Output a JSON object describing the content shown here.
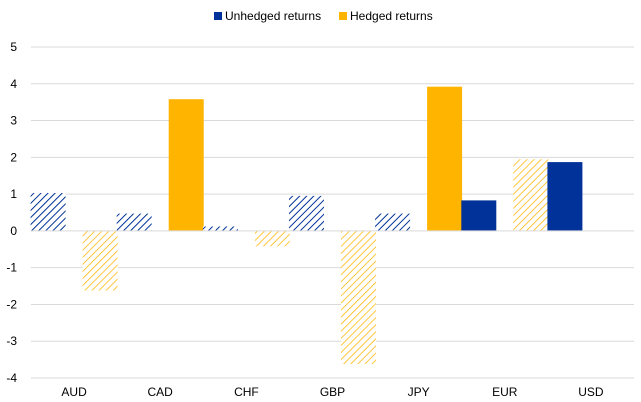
{
  "chart_data": {
    "type": "bar",
    "categories": [
      "AUD",
      "CAD",
      "CHF",
      "GBP",
      "JPY",
      "EUR",
      "USD"
    ],
    "series": [
      {
        "name": "Unhedged returns",
        "color": "#003299",
        "values": [
          1.03,
          0.47,
          0.12,
          0.95,
          0.47,
          0.83,
          1.87
        ],
        "hatched": [
          true,
          true,
          true,
          true,
          true,
          false,
          false
        ]
      },
      {
        "name": "Hedged returns",
        "color": "#ffb400",
        "values": [
          -1.62,
          3.58,
          -0.42,
          -3.62,
          3.92,
          1.95,
          null
        ],
        "hatched": [
          true,
          false,
          true,
          true,
          false,
          true,
          false
        ]
      }
    ],
    "yticks": [
      5,
      4,
      3,
      2,
      1,
      0,
      -1,
      -2,
      -3,
      -4
    ],
    "ylim": [
      -4,
      5
    ],
    "grid": true,
    "legend_position": "top"
  }
}
